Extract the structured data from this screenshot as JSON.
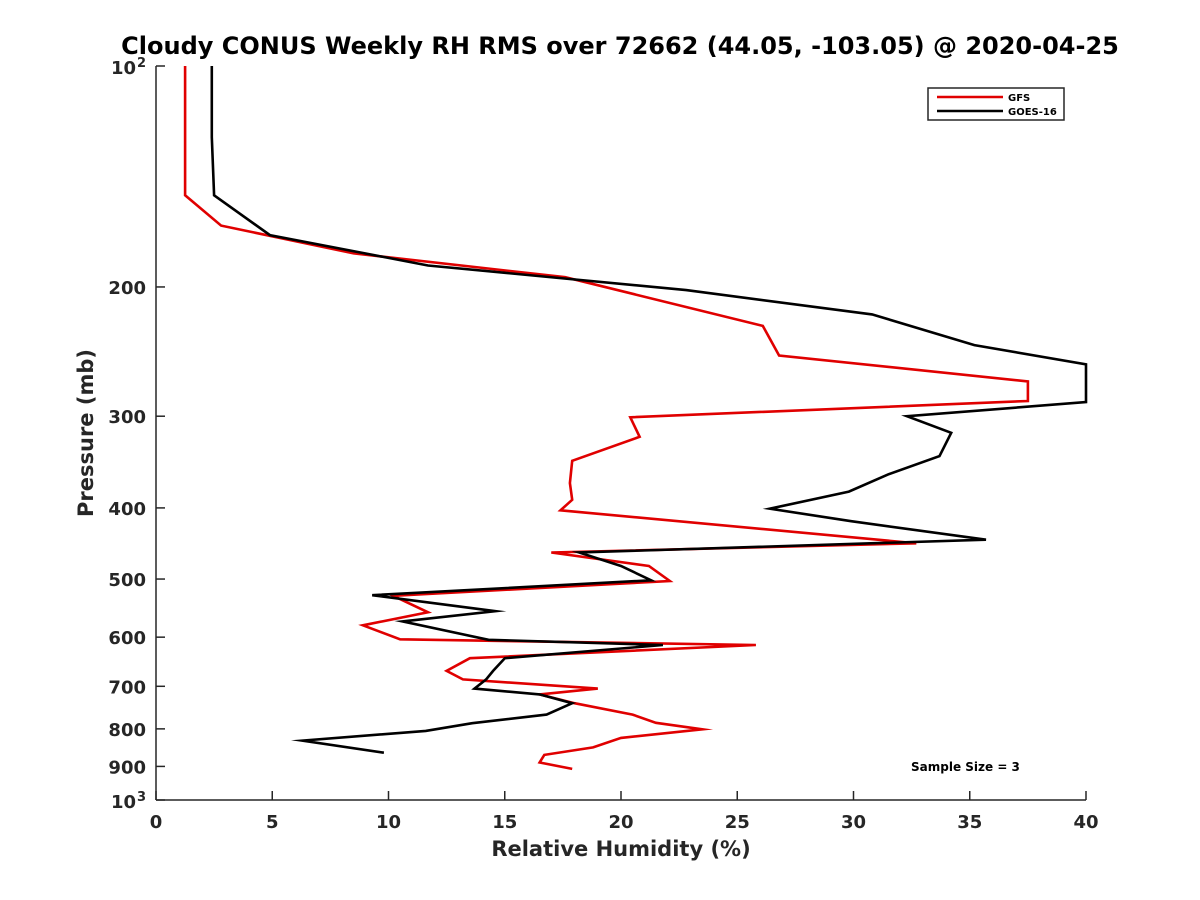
{
  "chart_data": {
    "type": "line",
    "title": "Cloudy CONUS Weekly RH RMS over 72662 (44.05, -103.05) @ 2020-04-25",
    "xlabel": "Relative Humidity (%)",
    "ylabel": "Pressure (mb)",
    "xlim": [
      0,
      40
    ],
    "ylim": [
      100,
      1000
    ],
    "y_scale": "log",
    "y_reversed": true,
    "x_ticks": [
      "0",
      "5",
      "10",
      "15",
      "20",
      "25",
      "30",
      "35",
      "40"
    ],
    "y_ticks": [
      {
        "value": 100,
        "base": "10",
        "exp": "2"
      },
      {
        "value": 200,
        "label": "200"
      },
      {
        "value": 300,
        "label": "300"
      },
      {
        "value": 400,
        "label": "400"
      },
      {
        "value": 500,
        "label": "500"
      },
      {
        "value": 600,
        "label": "600"
      },
      {
        "value": 700,
        "label": "700"
      },
      {
        "value": 800,
        "label": "800"
      },
      {
        "value": 900,
        "label": "900"
      },
      {
        "value": 1000,
        "base": "10",
        "exp": "3"
      }
    ],
    "legend_position": "top-right",
    "grid": false,
    "series": [
      {
        "name": "GFS",
        "color": "#e00000",
        "points": [
          [
            1.25,
            100
          ],
          [
            1.25,
            125
          ],
          [
            1.25,
            150
          ],
          [
            2.8,
            165
          ],
          [
            8.5,
            180
          ],
          [
            17.6,
            194
          ],
          [
            26.1,
            226
          ],
          [
            26.8,
            248
          ],
          [
            37.5,
            269
          ],
          [
            37.5,
            286
          ],
          [
            20.4,
            301
          ],
          [
            20.8,
            320
          ],
          [
            17.9,
            345
          ],
          [
            17.8,
            370
          ],
          [
            17.9,
            390
          ],
          [
            17.4,
            403
          ],
          [
            32.7,
            447
          ],
          [
            17.0,
            460
          ],
          [
            21.2,
            480
          ],
          [
            22.1,
            503
          ],
          [
            10.2,
            527
          ],
          [
            11.7,
            555
          ],
          [
            8.9,
            578
          ],
          [
            10.5,
            604
          ],
          [
            25.8,
            615
          ],
          [
            13.5,
            641
          ],
          [
            12.5,
            667
          ],
          [
            13.2,
            685
          ],
          [
            19.0,
            705
          ],
          [
            16.5,
            718
          ],
          [
            18.0,
            738
          ],
          [
            20.5,
            765
          ],
          [
            21.5,
            785
          ],
          [
            23.5,
            801
          ],
          [
            20.0,
            823
          ],
          [
            18.8,
            848
          ],
          [
            16.7,
            868
          ],
          [
            16.5,
            889
          ],
          [
            17.9,
            907
          ]
        ]
      },
      {
        "name": "GOES-16",
        "color": "#000000",
        "points": [
          [
            2.4,
            100
          ],
          [
            2.4,
            125
          ],
          [
            2.5,
            150
          ],
          [
            4.9,
            170
          ],
          [
            11.7,
            187
          ],
          [
            22.8,
            202
          ],
          [
            30.8,
            218
          ],
          [
            35.2,
            240
          ],
          [
            40.0,
            255
          ],
          [
            40.0,
            287
          ],
          [
            32.3,
            300
          ],
          [
            34.2,
            316
          ],
          [
            33.7,
            340
          ],
          [
            31.5,
            360
          ],
          [
            29.8,
            380
          ],
          [
            26.4,
            401
          ],
          [
            29.9,
            417
          ],
          [
            35.7,
            442
          ],
          [
            18.2,
            460
          ],
          [
            20.0,
            480
          ],
          [
            21.3,
            502
          ],
          [
            9.3,
            526
          ],
          [
            14.6,
            553
          ],
          [
            10.6,
            571
          ],
          [
            14.3,
            605
          ],
          [
            21.8,
            615
          ],
          [
            15.0,
            641
          ],
          [
            14.5,
            667
          ],
          [
            14.2,
            685
          ],
          [
            13.7,
            705
          ],
          [
            16.5,
            718
          ],
          [
            17.9,
            738
          ],
          [
            16.8,
            765
          ],
          [
            13.6,
            786
          ],
          [
            11.6,
            805
          ],
          [
            6.3,
            830
          ],
          [
            9.8,
            862
          ]
        ]
      }
    ],
    "annotations": [
      "Sample Size = 3"
    ]
  },
  "legend": {
    "items": [
      {
        "label": "GFS",
        "color": "#e00000"
      },
      {
        "label": "GOES-16",
        "color": "#000000"
      }
    ]
  }
}
